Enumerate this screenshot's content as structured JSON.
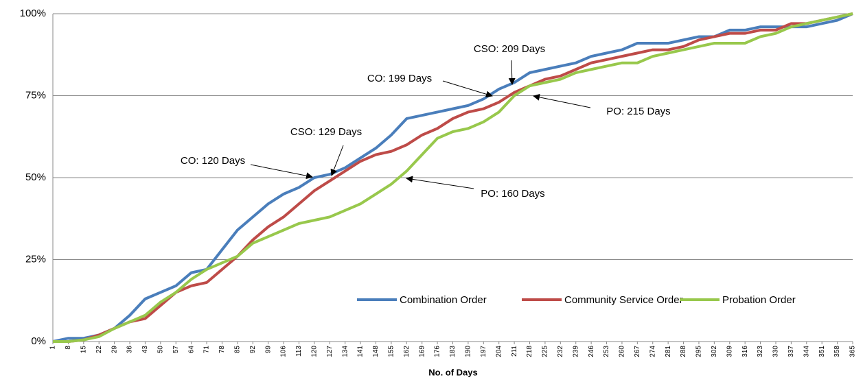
{
  "chart_data": {
    "type": "line",
    "x_label": "No. of Days",
    "xlim": [
      1,
      365
    ],
    "xticks": [
      1,
      8,
      15,
      22,
      29,
      36,
      43,
      50,
      57,
      64,
      71,
      78,
      85,
      92,
      99,
      106,
      113,
      120,
      127,
      134,
      141,
      148,
      155,
      162,
      169,
      176,
      183,
      190,
      197,
      204,
      211,
      218,
      225,
      232,
      239,
      246,
      253,
      260,
      267,
      274,
      281,
      288,
      295,
      302,
      309,
      316,
      323,
      330,
      337,
      344,
      351,
      358,
      365
    ],
    "x": [
      1,
      8,
      15,
      22,
      29,
      36,
      43,
      50,
      57,
      64,
      71,
      78,
      85,
      92,
      99,
      106,
      113,
      120,
      127,
      134,
      141,
      148,
      155,
      162,
      169,
      176,
      183,
      190,
      197,
      204,
      211,
      218,
      225,
      232,
      239,
      246,
      253,
      260,
      267,
      274,
      281,
      288,
      295,
      302,
      309,
      316,
      323,
      330,
      337,
      344,
      351,
      358,
      365
    ],
    "ylim": [
      0,
      100
    ],
    "yticks": [
      {
        "value": 0,
        "label": "0%"
      },
      {
        "value": 25,
        "label": "25%"
      },
      {
        "value": 50,
        "label": "50%"
      },
      {
        "value": 75,
        "label": "75%"
      },
      {
        "value": 100,
        "label": "100%"
      }
    ],
    "grid": true,
    "legend": "lower right",
    "series": [
      {
        "name": "Combination Order",
        "color": "#4a7ebb",
        "values": [
          0,
          1,
          1,
          2,
          4,
          8,
          13,
          15,
          17,
          21,
          22,
          28,
          34,
          38,
          42,
          45,
          47,
          50,
          51,
          53,
          56,
          59,
          63,
          68,
          69,
          70,
          71,
          72,
          74,
          77,
          79,
          82,
          83,
          84,
          85,
          87,
          88,
          89,
          91,
          91,
          91,
          92,
          93,
          93,
          95,
          95,
          96,
          96,
          96,
          96,
          97,
          98,
          100
        ]
      },
      {
        "name": "Community Service Order",
        "color": "#be4b48",
        "values": [
          0,
          0,
          0.5,
          2,
          4,
          6,
          7,
          11,
          15,
          17,
          18,
          22,
          26,
          31,
          35,
          38,
          42,
          46,
          49,
          52,
          55,
          57,
          58,
          60,
          63,
          65,
          68,
          70,
          71,
          73,
          76,
          78,
          80,
          81,
          83,
          85,
          86,
          87,
          88,
          89,
          89,
          90,
          92,
          93,
          94,
          94,
          95,
          95,
          97,
          97,
          98,
          99,
          100
        ]
      },
      {
        "name": "Probation Order",
        "color": "#98c84c",
        "values": [
          0,
          0,
          0.5,
          1.5,
          4,
          6,
          8,
          12,
          15,
          19,
          22,
          24,
          26,
          30,
          32,
          34,
          36,
          37,
          38,
          40,
          42,
          45,
          48,
          52,
          57,
          62,
          64,
          65,
          67,
          70,
          75,
          78,
          79,
          80,
          82,
          83,
          84,
          85,
          85,
          87,
          88,
          89,
          90,
          91,
          91,
          91,
          93,
          94,
          96,
          97,
          98,
          99,
          100
        ]
      }
    ],
    "annotations": [
      "CO: 120 Days",
      "CSO: 129 Days",
      "CO: 199 Days",
      "CSO: 209 Days",
      "PO: 215 Days",
      "PO: 160 Days"
    ]
  }
}
